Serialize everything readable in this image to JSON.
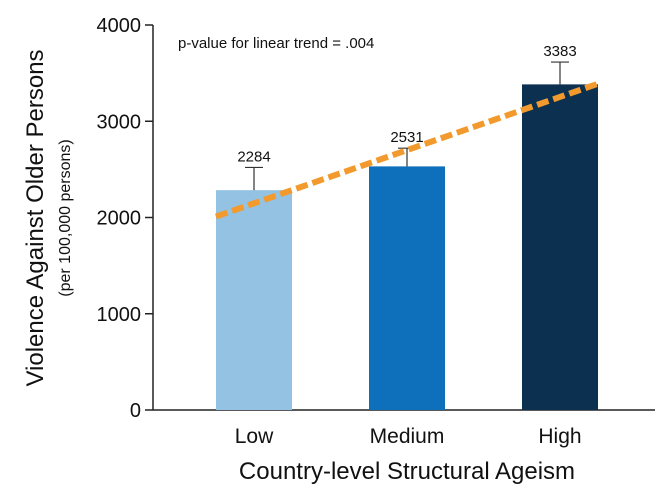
{
  "chart_data": {
    "type": "bar",
    "categories": [
      "Low",
      "Medium",
      "High"
    ],
    "values": [
      2284,
      2531,
      3383
    ],
    "data_labels": [
      "2284",
      "2531",
      "3383"
    ],
    "error_upper": [
      2520,
      2720,
      3615
    ],
    "colors": [
      "#93c2e3",
      "#0e70ba",
      "#0b3050"
    ],
    "trend_line": {
      "type": "linear",
      "color": "#f29a2e",
      "style": "dashed",
      "y_start": 2010,
      "y_end": 3390
    },
    "annotation": "p-value for linear trend = .004",
    "ylabel": "Violence Against Older Persons",
    "ylabel_sub": "(per 100,000 persons)",
    "xlabel": "Country-level Structural Ageism",
    "ylim": [
      0,
      4000
    ],
    "yticks": [
      0,
      1000,
      2000,
      3000,
      4000
    ],
    "ytick_labels": [
      "0",
      "1000",
      "2000",
      "3000",
      "4000"
    ],
    "grid": false
  }
}
